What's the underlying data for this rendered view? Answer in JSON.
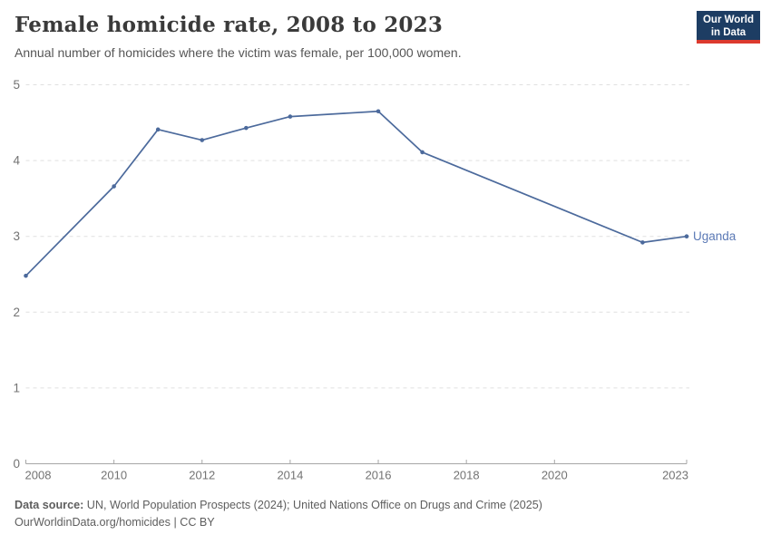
{
  "header": {
    "title": "Female homicide rate, 2008 to 2023",
    "subtitle": "Annual number of homicides where the victim was female, per 100,000 women."
  },
  "logo": {
    "line1": "Our World",
    "line2": "in Data",
    "bg_color": "#1d3d63",
    "accent_color": "#dc3a2e"
  },
  "footer": {
    "source_label": "Data source:",
    "source_text": " UN, World Population Prospects (2024); United Nations Office on Drugs and Crime (2025)",
    "license_text": "OurWorldinData.org/homicides | CC BY"
  },
  "colors": {
    "line": "#4c6a9c",
    "entity_label": "#5b79b5",
    "gridline": "#e0e0e0",
    "axis": "#a6a6a6",
    "tick_label": "#737373"
  },
  "chart_data": {
    "type": "line",
    "title": "Female homicide rate, 2008 to 2023",
    "subtitle": "Annual number of homicides where the victim was female, per 100,000 women.",
    "xlabel": "",
    "ylabel": "",
    "xlim": [
      2008,
      2023
    ],
    "ylim": [
      0,
      5
    ],
    "x_ticks": [
      2008,
      2010,
      2012,
      2014,
      2016,
      2018,
      2020,
      2023
    ],
    "y_ticks": [
      0,
      1,
      2,
      3,
      4,
      5
    ],
    "grid": "horizontal-dashed",
    "legend_position": "end-of-line-label",
    "series": [
      {
        "name": "Uganda",
        "points": [
          {
            "year": 2008,
            "value": 2.48
          },
          {
            "year": 2010,
            "value": 3.66
          },
          {
            "year": 2011,
            "value": 4.41
          },
          {
            "year": 2012,
            "value": 4.27
          },
          {
            "year": 2013,
            "value": 4.43
          },
          {
            "year": 2014,
            "value": 4.58
          },
          {
            "year": 2016,
            "value": 4.65
          },
          {
            "year": 2017,
            "value": 4.11
          },
          {
            "year": 2022,
            "value": 2.92
          },
          {
            "year": 2023,
            "value": 3.0
          }
        ]
      }
    ]
  }
}
